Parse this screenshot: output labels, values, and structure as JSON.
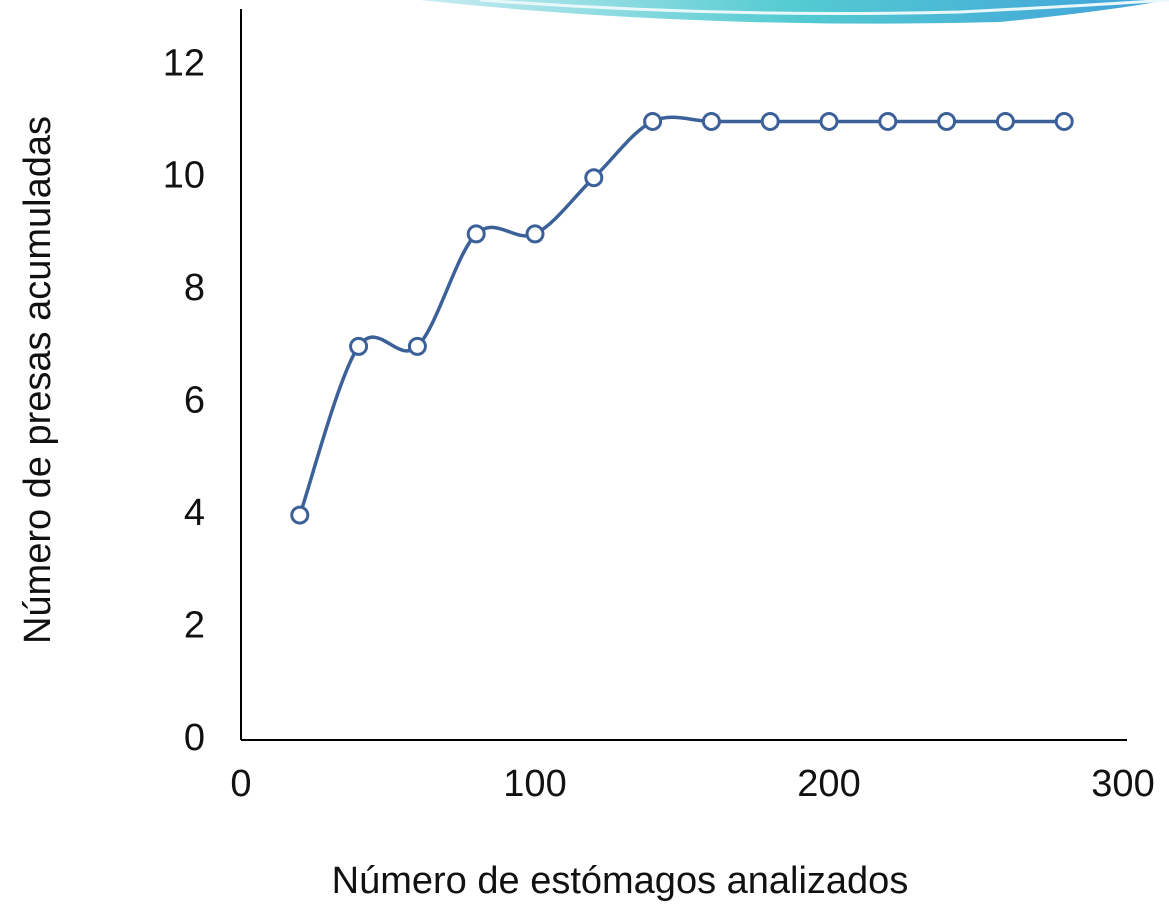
{
  "chart_data": {
    "type": "line",
    "x_label": "Número de estómagos analizados",
    "y_label": "Número de presas acumuladas",
    "x": [
      20,
      40,
      60,
      80,
      100,
      120,
      140,
      160,
      180,
      200,
      220,
      240,
      260,
      280
    ],
    "series": [
      {
        "color": "#3b6198",
        "values": [
          4,
          7,
          7,
          9,
          9,
          10,
          11,
          11,
          11,
          11,
          11,
          11,
          11,
          11
        ]
      }
    ],
    "xlim": [
      0,
      300
    ],
    "xticks": [
      0,
      100,
      200,
      300
    ],
    "ylim": [
      0,
      13
    ],
    "yticks": [
      0,
      2,
      4,
      6,
      8,
      10,
      12
    ],
    "smooth": true
  }
}
